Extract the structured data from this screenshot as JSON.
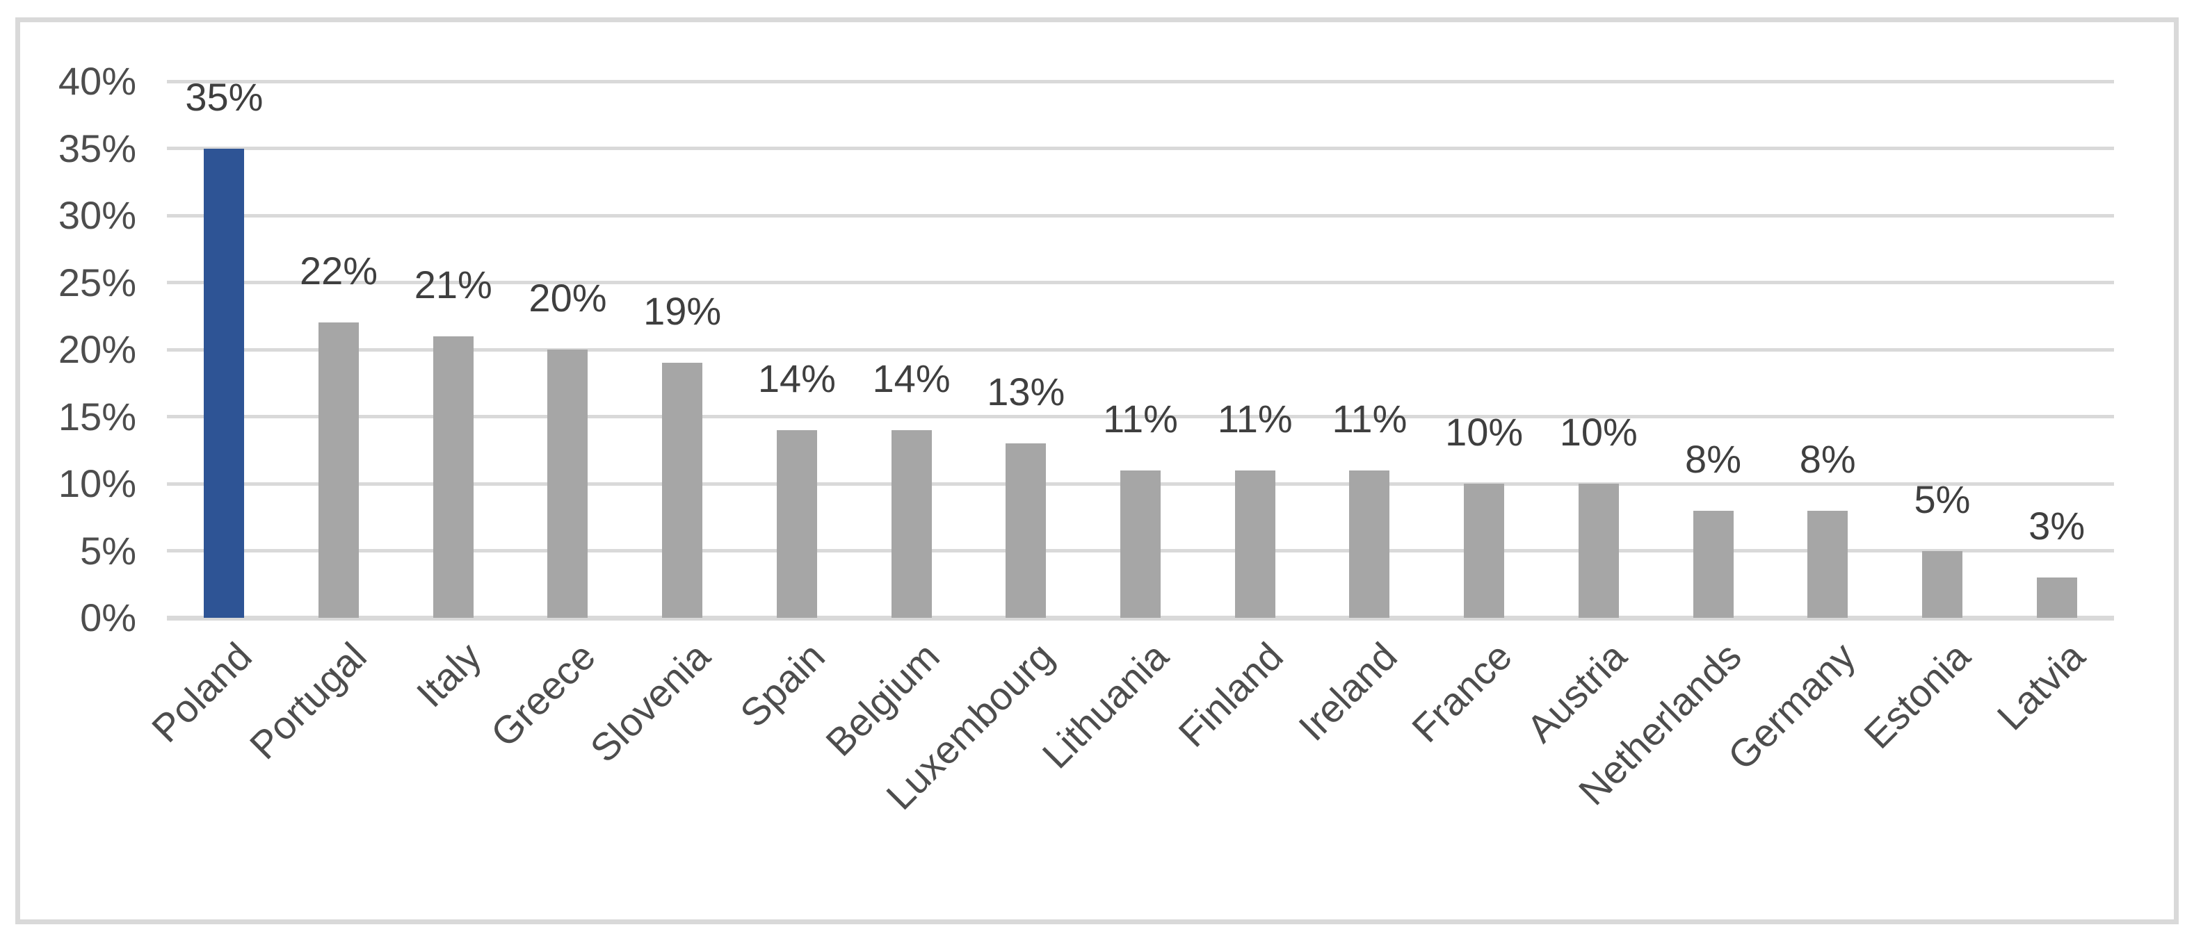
{
  "chart_data": {
    "type": "bar",
    "title": "",
    "xlabel": "",
    "ylabel": "",
    "categories": [
      "Poland",
      "Portugal",
      "Italy",
      "Greece",
      "Slovenia",
      "Spain",
      "Belgium",
      "Luxembourg",
      "Lithuania",
      "Finland",
      "Ireland",
      "France",
      "Austria",
      "Netherlands",
      "Germany",
      "Estonia",
      "Latvia"
    ],
    "values": [
      35,
      22,
      21,
      20,
      19,
      14,
      14,
      13,
      11,
      11,
      11,
      10,
      10,
      8,
      8,
      5,
      3
    ],
    "labels": [
      "35%",
      "22%",
      "21%",
      "20%",
      "19%",
      "14%",
      "14%",
      "13%",
      "11%",
      "11%",
      "11%",
      "10%",
      "10%",
      "8%",
      "8%",
      "5%",
      "3%"
    ],
    "yticks": [
      "0%",
      "5%",
      "10%",
      "15%",
      "20%",
      "25%",
      "30%",
      "35%",
      "40%"
    ],
    "ylim": [
      0,
      40
    ],
    "grid": true,
    "legend": false,
    "highlight_index": 0,
    "colors": {
      "highlight_bar": "#2E5495",
      "bar": "#A6A6A6",
      "gridline": "#D9D9D9",
      "axis_line": "#D9D9D9",
      "frame_border": "#D9D9D9",
      "tick_text": "#4D4D4D",
      "label_text": "#3F3F3F"
    }
  }
}
